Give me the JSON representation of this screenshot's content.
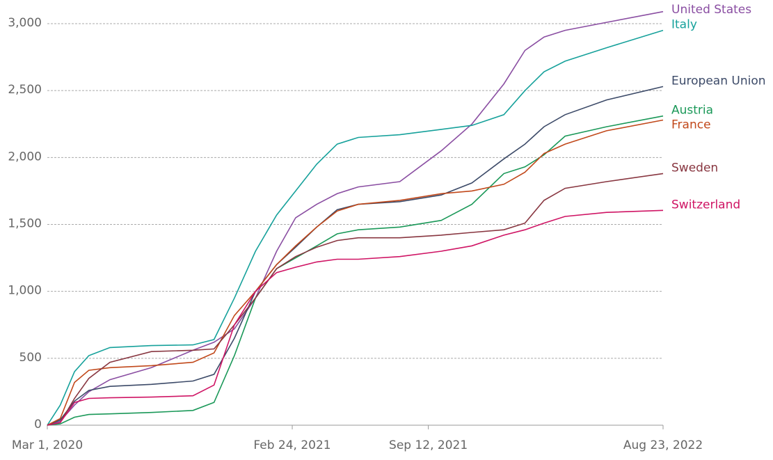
{
  "chart_data": {
    "type": "line",
    "x": [
      "2020-03-01",
      "2020-03-20",
      "2020-04-10",
      "2020-05-01",
      "2020-06-01",
      "2020-08-01",
      "2020-10-01",
      "2020-11-01",
      "2020-12-01",
      "2021-01-01",
      "2021-02-01",
      "2021-03-01",
      "2021-04-01",
      "2021-05-01",
      "2021-06-01",
      "2021-08-01",
      "2021-10-01",
      "2021-11-15",
      "2022-01-01",
      "2022-02-01",
      "2022-03-01",
      "2022-04-01",
      "2022-06-01",
      "2022-08-23"
    ],
    "xlim": [
      "2020-03-01",
      "2022-08-23"
    ],
    "xticks": [
      {
        "value": "2020-03-01",
        "label": "Mar 1, 2020"
      },
      {
        "value": "2021-02-24",
        "label": "Feb 24, 2021"
      },
      {
        "value": "2021-09-12",
        "label": "Sep 12, 2021"
      },
      {
        "value": "2022-08-23",
        "label": "Aug 23, 2022"
      }
    ],
    "ylim": [
      0,
      3000
    ],
    "yticks": [
      0,
      500,
      {
        "value": 1000,
        "label": "1,000"
      },
      {
        "value": 1500,
        "label": "1,500"
      },
      {
        "value": 2000,
        "label": "2,000"
      },
      {
        "value": 2500,
        "label": "2,500"
      },
      {
        "value": 3000,
        "label": "3,000"
      }
    ],
    "grid": true,
    "series": [
      {
        "name": "United States",
        "color": "#8a4ea2",
        "values": [
          0,
          30,
          150,
          250,
          340,
          430,
          560,
          620,
          720,
          950,
          1300,
          1550,
          1650,
          1730,
          1780,
          1820,
          2050,
          2250,
          2550,
          2800,
          2900,
          2950,
          3010,
          3090
        ]
      },
      {
        "name": "Italy",
        "color": "#16a19b",
        "values": [
          0,
          150,
          400,
          520,
          580,
          595,
          600,
          640,
          950,
          1300,
          1570,
          1750,
          1950,
          2100,
          2150,
          2170,
          2210,
          2240,
          2320,
          2500,
          2640,
          2720,
          2820,
          2950
        ]
      },
      {
        "name": "European Union",
        "color": "#3c4a68",
        "values": [
          0,
          40,
          180,
          260,
          290,
          305,
          330,
          380,
          650,
          1000,
          1200,
          1330,
          1480,
          1610,
          1650,
          1670,
          1720,
          1810,
          1990,
          2100,
          2230,
          2320,
          2430,
          2530
        ]
      },
      {
        "name": "Austria",
        "color": "#1a9858",
        "values": [
          0,
          10,
          60,
          80,
          85,
          95,
          110,
          170,
          520,
          950,
          1170,
          1250,
          1340,
          1430,
          1460,
          1480,
          1530,
          1650,
          1880,
          1930,
          2020,
          2160,
          2230,
          2310
        ]
      },
      {
        "name": "France",
        "color": "#c1481a",
        "values": [
          0,
          50,
          320,
          410,
          430,
          445,
          470,
          540,
          820,
          1000,
          1200,
          1340,
          1480,
          1600,
          1650,
          1680,
          1730,
          1750,
          1800,
          1890,
          2030,
          2100,
          2200,
          2280
        ]
      },
      {
        "name": "Sweden",
        "color": "#883640",
        "values": [
          0,
          20,
          200,
          350,
          470,
          550,
          560,
          570,
          750,
          950,
          1170,
          1260,
          1330,
          1380,
          1400,
          1400,
          1420,
          1440,
          1460,
          1510,
          1680,
          1770,
          1820,
          1880
        ]
      },
      {
        "name": "Switzerland",
        "color": "#cf1464",
        "values": [
          0,
          20,
          170,
          200,
          205,
          210,
          220,
          300,
          750,
          1000,
          1140,
          1180,
          1220,
          1240,
          1240,
          1260,
          1300,
          1340,
          1420,
          1460,
          1510,
          1560,
          1590,
          1605
        ]
      }
    ]
  }
}
